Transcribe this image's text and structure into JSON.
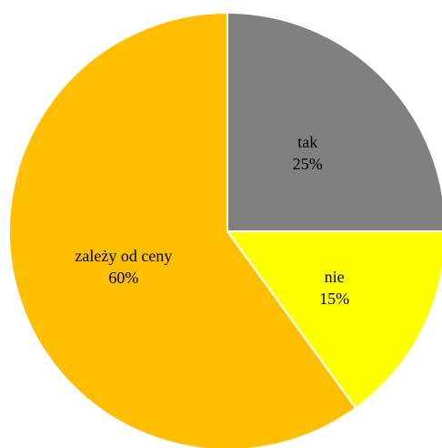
{
  "chart_data": {
    "type": "pie",
    "title": "",
    "series": [
      {
        "values": [
          {
            "label": "tak",
            "value": 25,
            "display": "25%",
            "color": "#808080"
          },
          {
            "label": "nie",
            "value": 15,
            "display": "15%",
            "color": "#ffff00"
          },
          {
            "label": "zależy od ceny",
            "value": 60,
            "display": "60%",
            "color": "#ffbf00"
          }
        ]
      }
    ],
    "start_angle_deg": 0,
    "direction": "clockwise",
    "legend": "none",
    "data_labels": "inside"
  }
}
